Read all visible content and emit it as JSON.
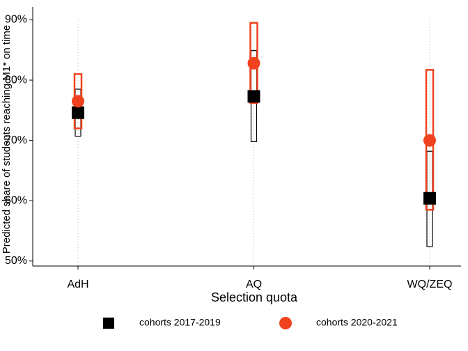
{
  "chart_data": {
    "type": "point-ci",
    "x_label": "Selection quota",
    "y_label": "Predicted share of students reaching M1* on time",
    "categories": [
      "AdH",
      "AQ",
      "WQ/ZEQ"
    ],
    "ylim": [
      49.4,
      91.9
    ],
    "yticks": [
      {
        "value": 50,
        "label": "50%"
      },
      {
        "value": 60,
        "label": "60%"
      },
      {
        "value": 70,
        "label": "70%"
      },
      {
        "value": 80,
        "label": "80%"
      },
      {
        "value": 90,
        "label": "90%"
      }
    ],
    "series": [
      {
        "name": "cohorts 2017-2019",
        "color": "#000000",
        "marker": "square",
        "values": [
          74.6,
          77.3,
          60.4
        ],
        "lower": [
          70.7,
          69.8,
          52.4
        ],
        "upper": [
          78.5,
          84.9,
          68.2
        ]
      },
      {
        "name": "cohorts 2020-2021",
        "color": "#f0421e",
        "marker": "circle",
        "values": [
          76.5,
          82.8,
          70.0
        ],
        "lower": [
          72.0,
          76.2,
          58.5
        ],
        "upper": [
          81.0,
          89.5,
          81.7
        ]
      }
    ]
  }
}
